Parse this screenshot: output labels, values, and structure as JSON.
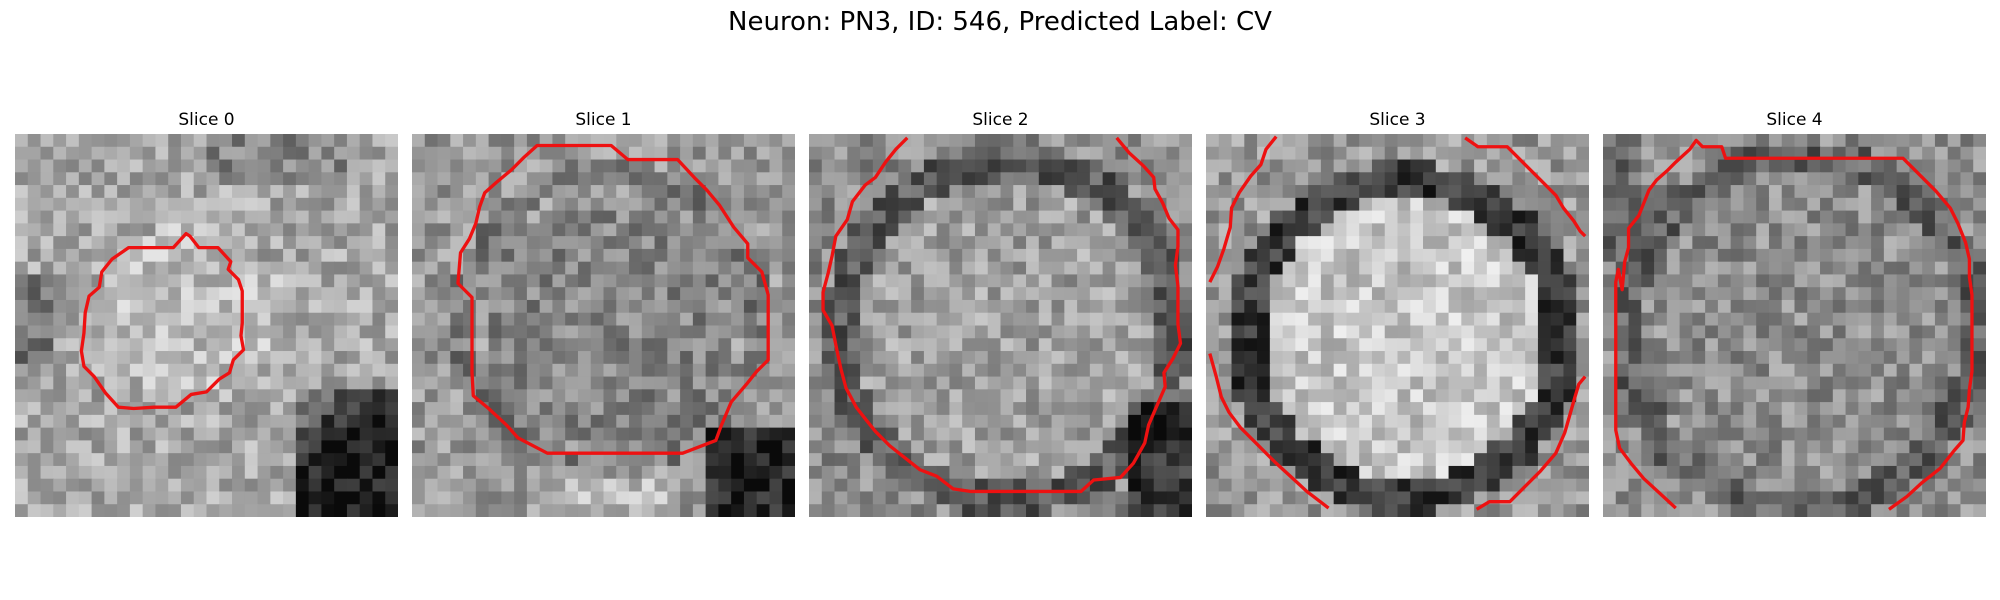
{
  "figure": {
    "title": "Neuron: PN3, ID: 546, Predicted Label: CV",
    "contour_color": "#ee1111"
  },
  "panels": [
    {
      "title": "Slice 0"
    },
    {
      "title": "Slice 1"
    },
    {
      "title": "Slice 2"
    },
    {
      "title": "Slice 3"
    },
    {
      "title": "Slice 4"
    }
  ]
}
